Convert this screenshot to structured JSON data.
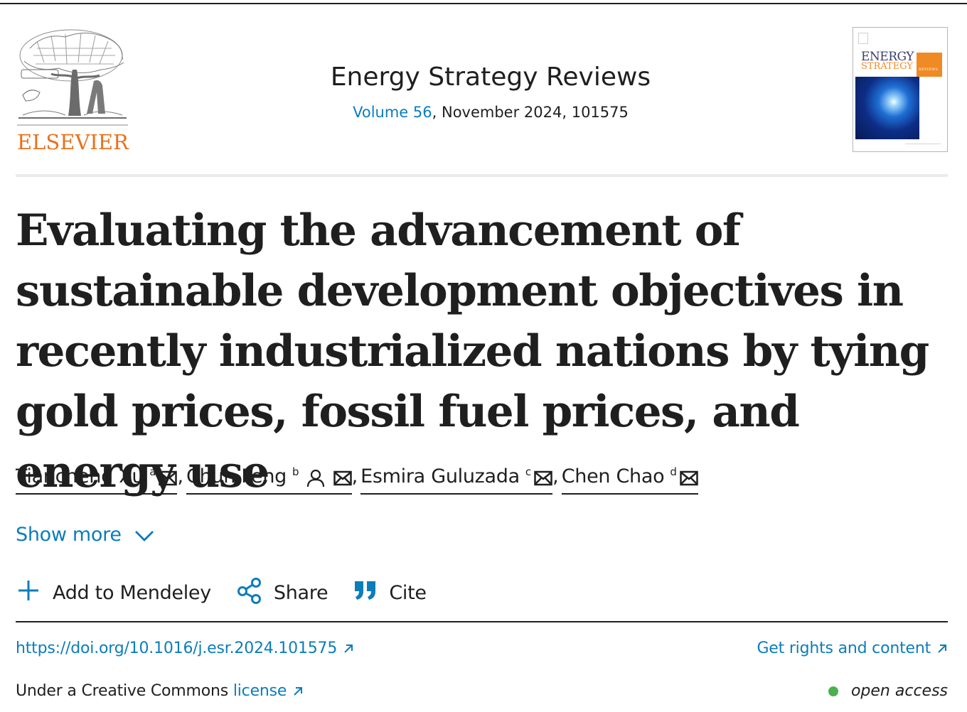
{
  "header": {
    "publisher": "ELSEVIER",
    "journal_title": "Energy Strategy Reviews",
    "volume_link": "Volume 56",
    "issue_rest": ", November 2024, 101575",
    "cover": {
      "title_line1": "ENERGY",
      "title_line2": "STRATEGY",
      "badge": "REVIEWS"
    }
  },
  "article": {
    "title": "Evaluating the advancement of sustainable development objectives in recently industrialized nations by tying gold prices, fossil fuel prices, and energy use"
  },
  "authors": [
    {
      "name": "Tiancheng Xu",
      "sup": "a",
      "corresponding": false
    },
    {
      "name": "Chun Feng",
      "sup": "b",
      "corresponding": true
    },
    {
      "name": "Esmira Guluzada",
      "sup": "c",
      "corresponding": false
    },
    {
      "name": "Chen Chao",
      "sup": "d",
      "corresponding": false
    }
  ],
  "author_separator": ",",
  "show_more_label": "Show more",
  "actions": {
    "mendeley": "Add to Mendeley",
    "share": "Share",
    "cite": "Cite"
  },
  "links": {
    "doi": "https://doi.org/10.1016/j.esr.2024.101575",
    "rights": "Get rights and content"
  },
  "license": {
    "prefix": "Under a Creative Commons",
    "link": "license"
  },
  "access": {
    "label": "open access",
    "dot_color": "#4caf50"
  },
  "colors": {
    "link": "#0c7dbb",
    "publisher": "#e9711c",
    "text": "#1f1f1f"
  }
}
